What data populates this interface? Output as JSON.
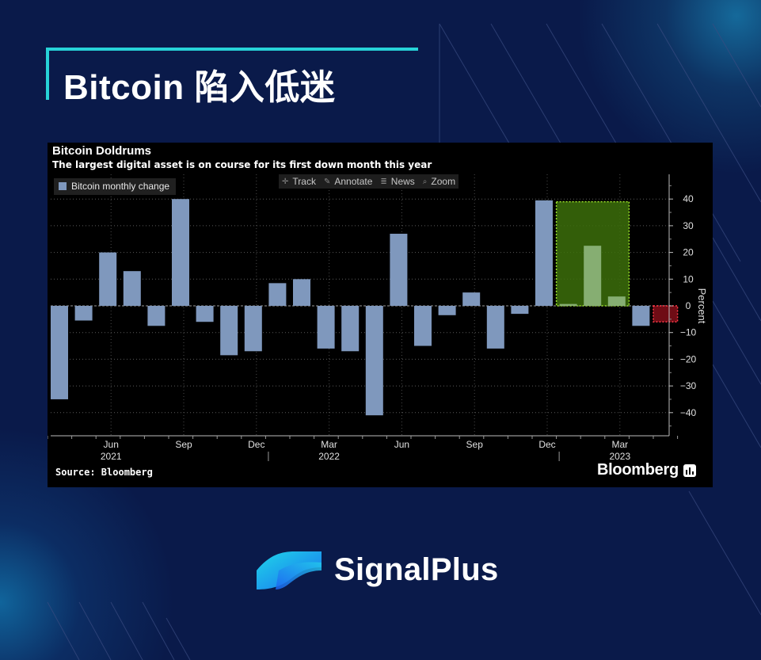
{
  "page": {
    "title": "Bitcoin 陷入低迷",
    "brand": "SignalPlus",
    "colors": {
      "background": "#0a1a4a",
      "accent": "#27d3d8",
      "bar": "#7f98bd",
      "highlight_green": "#3c6e0a",
      "highlight_red": "#8b0f1a"
    }
  },
  "toolbar": {
    "track": "Track",
    "annotate": "Annotate",
    "news": "News",
    "zoom": "Zoom"
  },
  "chart_data": {
    "type": "bar",
    "title": "Bitcoin Doldrums",
    "subtitle": "The largest digital asset is on course for its first down month this year",
    "ylabel": "Percent",
    "ylim": [
      -49,
      50
    ],
    "yticks": [
      40,
      30,
      20,
      10,
      0,
      -10,
      -20,
      -30,
      -40
    ],
    "legend": [
      "Bitcoin monthly change"
    ],
    "legend_position": "top-left",
    "grid": true,
    "categories": [
      "2021-04",
      "2021-05",
      "2021-06",
      "2021-07",
      "2021-08",
      "2021-09",
      "2021-10",
      "2021-11",
      "2021-12",
      "2022-01",
      "2022-02",
      "2022-03",
      "2022-04",
      "2022-05",
      "2022-06",
      "2022-07",
      "2022-08",
      "2022-09",
      "2022-10",
      "2022-11",
      "2022-12",
      "2023-01",
      "2023-02",
      "2023-03",
      "2023-04",
      "2023-05"
    ],
    "values": [
      -35,
      -5.5,
      20,
      13,
      -7.5,
      40,
      -6,
      -18.5,
      -17,
      8.5,
      10,
      -16,
      -17,
      -41,
      27,
      -15,
      -3.5,
      5,
      -16,
      -3,
      39.5,
      0.7,
      22.5,
      3.5,
      -7.5,
      0
    ],
    "x_tick_labels": [
      {
        "label": "Jun",
        "year": "2021",
        "index": 2
      },
      {
        "label": "Sep",
        "index": 5
      },
      {
        "label": "Dec",
        "index": 8
      },
      {
        "label": "Mar",
        "year": "2022",
        "index": 11
      },
      {
        "label": "Jun",
        "index": 14
      },
      {
        "label": "Sep",
        "index": 17
      },
      {
        "label": "Dec",
        "index": 20
      },
      {
        "label": "Mar",
        "year": "2023",
        "index": 23
      }
    ],
    "highlights": [
      {
        "from_index": 21,
        "to_index": 24,
        "y0": 0,
        "y1": 39,
        "color": "green"
      },
      {
        "from_index": 25,
        "to_index": 26,
        "y0": -6,
        "y1": 0,
        "color": "red"
      }
    ],
    "source": "Source: Bloomberg",
    "publisher": "Bloomberg"
  }
}
